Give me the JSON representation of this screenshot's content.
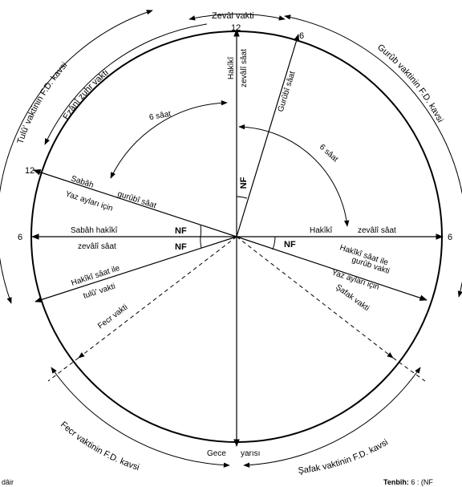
{
  "top": {
    "zevali_vakti": "Zevâl vakti",
    "twelve": "12"
  },
  "arcs": {
    "tulu_kavsi": "Tulû' vaktinin F.D. kavsi",
    "ezani_zuhr": "Ezânî zuhr vakti",
    "gurub_kavsi": "Gurûb vaktinin F.D. kavsi",
    "fecr_kavsi": "Fecr vaktinin F.D. kavsi",
    "safak_kavsi": "Şafak vaktinin F.D. kavsi"
  },
  "radials": {
    "hakiki_zevali_1": "Hakîkî",
    "hakiki_zevali_2": "zevâlî sâat",
    "gurubi_saat": "Gurûbî sâat",
    "six_top": "6",
    "saat6_left": "6 sâat",
    "saat6_right": "6 sâat",
    "sabah": "Sabâh",
    "gurubi_saat2": "gurûbî sâat",
    "yaz_aylari_left": "Yaz ayları için",
    "twelve_left": "12",
    "six_left": "6",
    "sabah_hakiki": "Sabâh hakîkî",
    "zevali_saat_left": "zevâlî sâat",
    "hakiki_right": "Hakîkî",
    "zevali_saat_right": "zevâlî sâat",
    "six_right": "6",
    "hakiki_saat_ile_left": "Hakîkî sâat ile",
    "tulu_vakti": "tulû' vakti",
    "hakiki_saat_ile_right": "Hakîkî sâat ile",
    "gurub_vakti": "gurûb vakti",
    "yaz_aylari_right": "Yaz ayları için",
    "safak_vakti": "Şafak vakti",
    "fecr_vakti": "Fecr vakti",
    "gece": "Gece",
    "yarisi": "yarısı",
    "nf": "NF"
  },
  "footer": {
    "left": "dâir",
    "right_bold": "Tenbîh:",
    "right_rest": " 6 : (NF"
  }
}
